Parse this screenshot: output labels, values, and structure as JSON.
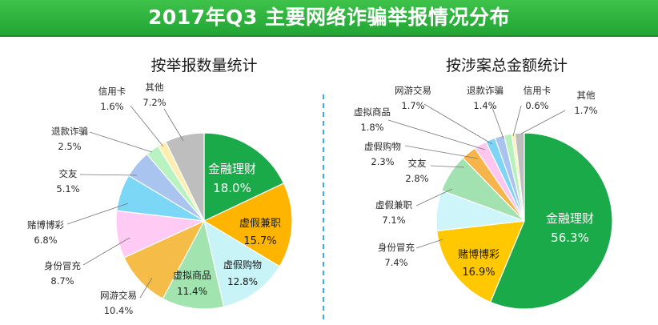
{
  "header": {
    "title": "2017年Q3 主要网络诈骗举报情况分布"
  },
  "chart_data": [
    {
      "type": "pie",
      "title": "按举报数量统计",
      "slices": [
        {
          "label": "金融理财",
          "value": 18.0,
          "value_text": "18.0%",
          "color": "#1aaa4a"
        },
        {
          "label": "虚假兼职",
          "value": 15.7,
          "value_text": "15.7%",
          "color": "#ffb400"
        },
        {
          "label": "虚假购物",
          "value": 12.8,
          "value_text": "12.8%",
          "color": "#c8f4f8"
        },
        {
          "label": "虚拟商品",
          "value": 11.4,
          "value_text": "11.4%",
          "color": "#a2e4b0"
        },
        {
          "label": "网游交易",
          "value": 10.4,
          "value_text": "10.4%",
          "color": "#f6bc48"
        },
        {
          "label": "身份冒充",
          "value": 8.7,
          "value_text": "8.7%",
          "color": "#ffcaf4"
        },
        {
          "label": "赌博博彩",
          "value": 6.8,
          "value_text": "6.8%",
          "color": "#7cd6f6"
        },
        {
          "label": "交友",
          "value": 5.1,
          "value_text": "5.1%",
          "color": "#aac4f0"
        },
        {
          "label": "退款诈骗",
          "value": 2.5,
          "value_text": "2.5%",
          "color": "#b8f2c0"
        },
        {
          "label": "信用卡",
          "value": 1.6,
          "value_text": "1.6%",
          "color": "#ffeeb0"
        },
        {
          "label": "其他",
          "value": 7.2,
          "value_text": "7.2%",
          "color": "#bebebe"
        }
      ]
    },
    {
      "type": "pie",
      "title": "按涉案总金额统计",
      "slices": [
        {
          "label": "金融理财",
          "value": 56.3,
          "value_text": "56.3%",
          "color": "#1aaa4a"
        },
        {
          "label": "赌博博彩",
          "value": 16.9,
          "value_text": "16.9%",
          "color": "#ffc800"
        },
        {
          "label": "身份冒充",
          "value": 7.4,
          "value_text": "7.4%",
          "color": "#cef6fa"
        },
        {
          "label": "虚假兼职",
          "value": 7.1,
          "value_text": "7.1%",
          "color": "#a2e2b0"
        },
        {
          "label": "交友",
          "value": 2.8,
          "value_text": "2.8%",
          "color": "#f6b44a"
        },
        {
          "label": "虚假购物",
          "value": 2.3,
          "value_text": "2.3%",
          "color": "#ffc6f0"
        },
        {
          "label": "虚拟商品",
          "value": 1.8,
          "value_text": "1.8%",
          "color": "#7ed4f4"
        },
        {
          "label": "网游交易",
          "value": 1.7,
          "value_text": "1.7%",
          "color": "#aac2ee"
        },
        {
          "label": "退款诈骗",
          "value": 1.4,
          "value_text": "1.4%",
          "color": "#b6f0bc"
        },
        {
          "label": "信用卡",
          "value": 0.6,
          "value_text": "0.6%",
          "color": "#ffeeb0"
        },
        {
          "label": "其他",
          "value": 1.7,
          "value_text": "1.7%",
          "color": "#bebebe"
        }
      ]
    }
  ]
}
